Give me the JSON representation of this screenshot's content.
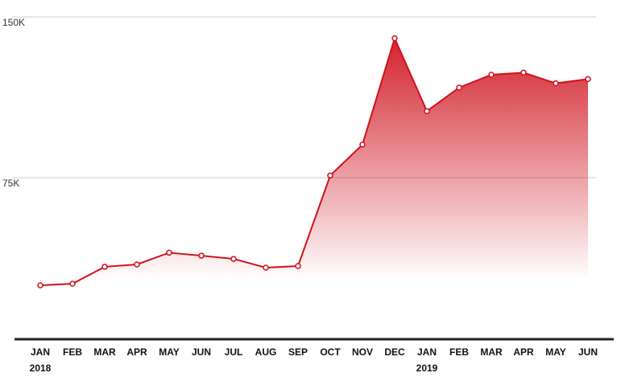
{
  "chart_data": {
    "type": "line",
    "categories": [
      "JAN",
      "FEB",
      "MAR",
      "APR",
      "MAY",
      "JUN",
      "JUL",
      "AUG",
      "SEP",
      "OCT",
      "NOV",
      "DEC",
      "JAN",
      "FEB",
      "MAR",
      "APR",
      "MAY",
      "JUN"
    ],
    "year_labels": [
      "2018",
      null,
      null,
      null,
      null,
      null,
      null,
      null,
      null,
      null,
      null,
      null,
      "2019",
      null,
      null,
      null,
      null,
      null
    ],
    "series": [
      {
        "color": "#d0101c",
        "values": [
          24750,
          25500,
          33400,
          34500,
          40000,
          38600,
          37100,
          33000,
          33750,
          76000,
          90400,
          140000,
          106000,
          117000,
          123000,
          124000,
          119000,
          121000
        ]
      }
    ],
    "ylim": [
      0,
      150000
    ],
    "yticks": [
      {
        "value": 75000,
        "label": "75K"
      },
      {
        "value": 150000,
        "label": "150K"
      }
    ],
    "grid": true,
    "area_fill": true
  }
}
